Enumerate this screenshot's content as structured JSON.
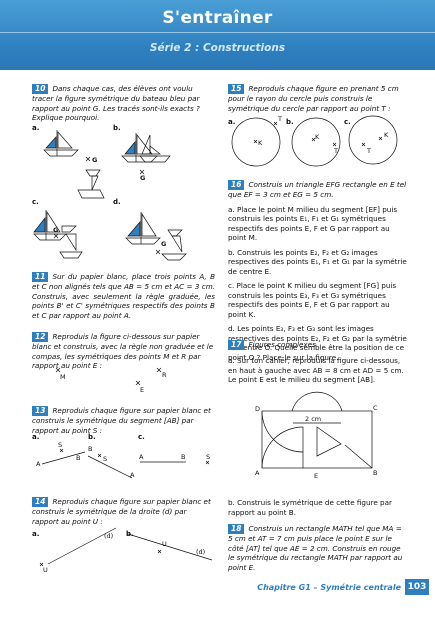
{
  "header": {
    "title": "S'entraîner",
    "subtitle": "Série 2 : Constructions"
  },
  "ex10": {
    "num": "10",
    "text": "Dans chaque cas, des élèves ont voulu tracer la figure symétrique du bateau bleu par rapport au point G. Les tracés sont-ils exacts ? Explique pourquoi.",
    "a": "a.",
    "b": "b.",
    "c": "c.",
    "d": "d.",
    "g": "G"
  },
  "ex11": {
    "num": "11",
    "text": "Sur du papier blanc, place trois points A, B et C non alignés tels que AB = 5 cm et AC = 3 cm. Construis, avec seulement la règle graduée, les points B' et C' symétriques respectifs des points B et C par rapport au point A."
  },
  "ex12": {
    "num": "12",
    "text": "Reproduis la figure ci-dessous sur papier blanc et construis, avec la règle non graduée et le compas, les symétriques des points M et R par rapport au point E :",
    "m": "M",
    "r": "R",
    "e": "E"
  },
  "ex13": {
    "num": "13",
    "text": "Reproduis chaque figure sur papier blanc et construis le symétrique du segment [AB] par rapport au point S :",
    "a": "a.",
    "b": "b.",
    "c": "c.",
    "pa": "A",
    "pb": "B",
    "ps": "S"
  },
  "ex14": {
    "num": "14",
    "text": "Reproduis chaque figure sur papier blanc et construis le symétrique de la droite (d) par rapport au point U :",
    "a": "a.",
    "b": "b.",
    "d": "(d)",
    "u": "U"
  },
  "ex15": {
    "num": "15",
    "text": "Reproduis chaque figure en prenant 5 cm pour le rayon du cercle puis construis le symétrique du cercle par rapport au point T :",
    "a": "a.",
    "b": "b.",
    "c": "c.",
    "k": "K",
    "t": "T"
  },
  "ex16": {
    "num": "16",
    "text": "Construis un triangle EFG rectangle en E tel que EF = 3 cm et EG = 5 cm.",
    "items": [
      "a. Place le point M milieu du segment [EF] puis construis les points E₁, F₁ et G₁ symétriques respectifs des points E, F et G par rapport au point M.",
      "b. Construis les points E₂, F₂ et G₂ images respectives des points E₁, F₁ et G₁ par la symétrie de centre E.",
      "c. Place le point K milieu du segment [FG] puis construis les points E₃, F₃ et G₃ symétriques respectifs des points E, F et G par rapport au point K.",
      "d. Les points E₃, F₃ et G₃ sont les images respectives des points E₂, F₂ et G₂ par la symétrie de centre O. Quelle semble être la position de ce point O ? Place-le sur la figure."
    ]
  },
  "ex17": {
    "num": "17",
    "title": "Figures complexes",
    "text": "a. Sur ton cahier, reproduis la figure ci-dessous, en haut à gauche avec AB = 8 cm et AD = 5 cm. Le point E est le milieu du segment [AB].",
    "d": "D",
    "c": "C",
    "a": "A",
    "b": "B",
    "e": "E",
    "dim": "2 cm",
    "b_text": "b. Construis le symétrique de cette figure par rapport au point B."
  },
  "ex18": {
    "num": "18",
    "text": "Construis un rectangle MATH tel que MA = 5 cm et AT = 7 cm puis place le point E sur le côté [AT] tel que AE = 2 cm. Construis en rouge le symétrique du rectangle MATH par rapport au point E."
  },
  "footer": {
    "chapter": "Chapitre G1 – Symétrie centrale",
    "page": "103"
  }
}
